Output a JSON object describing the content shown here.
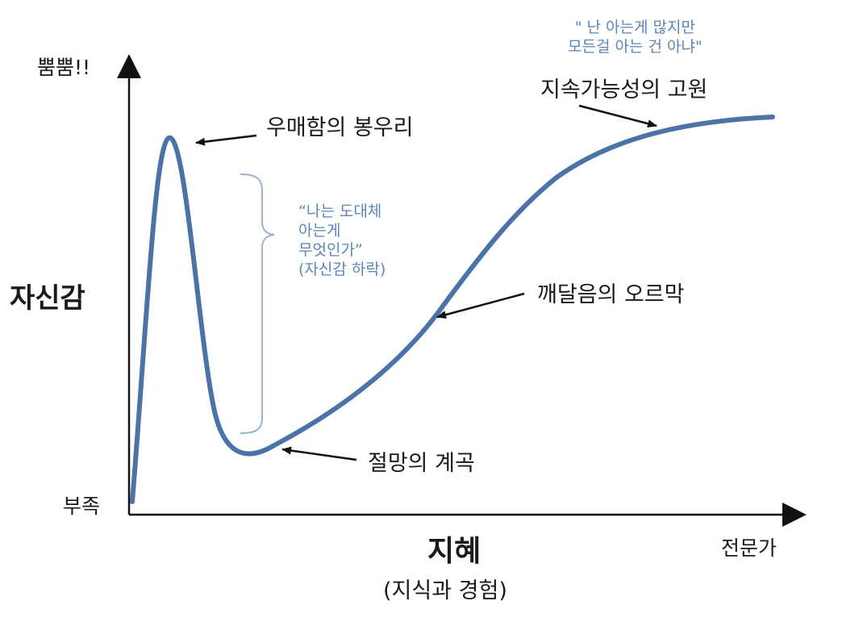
{
  "axes": {
    "y_top_label": "뿜뿜!!",
    "y_bottom_label": "부족",
    "y_title": "자신감",
    "x_title": "지혜",
    "x_subtitle": "(지식과 경험)",
    "x_right_label": "전문가"
  },
  "annotations": {
    "peak": "우매함의 봉우리",
    "valley": "절망의 계곡",
    "slope": "깨달음의 오르막",
    "plateau": "지속가능성의 고원"
  },
  "quotes": {
    "drop": [
      "“나는 도대체",
      "아는게",
      "무엇인가”",
      "(자신감 하락)"
    ],
    "plateau": [
      "\" 난 아는게 많지만",
      "모든걸 아는 건 아냐\""
    ]
  },
  "colors": {
    "curve": "#4a73a8",
    "quote_text": "#5a86b8",
    "brace": "#9ab3cf",
    "axis": "#111111"
  }
}
